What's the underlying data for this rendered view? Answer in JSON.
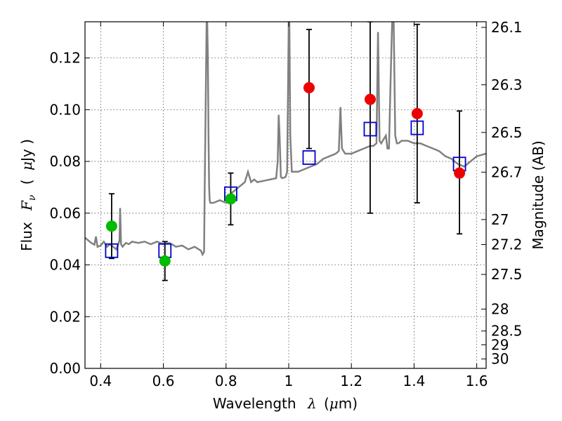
{
  "chart_data": {
    "type": "scatter",
    "title": "",
    "xlabel": "Wavelength",
    "xlabel_symbol": "λ",
    "xlabel_unit_open": "(",
    "xlabel_unit_mu": "μ",
    "xlabel_unit_rest": "m)",
    "ylabel_prefix": "Flux",
    "ylabel_symbol": "F",
    "ylabel_subscript": "ν",
    "ylabel_unit_open": "(",
    "ylabel_unit_mu": "μ",
    "ylabel_unit_rest": "Jy )",
    "y2label": "Magnitude (AB)",
    "xlim": [
      0.35,
      1.63
    ],
    "ylim": [
      0.0,
      0.134
    ],
    "grid": true,
    "x_ticks": [
      "0.4",
      "0.6",
      "0.8",
      "1",
      "1.2",
      "1.4",
      "1.6"
    ],
    "x_tick_values": [
      0.4,
      0.6,
      0.8,
      1.0,
      1.2,
      1.4,
      1.6
    ],
    "y_ticks": [
      "0.00",
      "0.02",
      "0.04",
      "0.06",
      "0.08",
      "0.10",
      "0.12"
    ],
    "y_tick_values": [
      0.0,
      0.02,
      0.04,
      0.06,
      0.08,
      0.1,
      0.12
    ],
    "y2_ticks": [
      "26.1",
      "26.3",
      "26.5",
      "26.7",
      "27",
      "27.2",
      "27.5",
      "28",
      "28.5",
      "29",
      "30"
    ],
    "y2_tick_values": [
      26.1,
      26.3,
      26.5,
      26.7,
      27.0,
      27.2,
      27.5,
      28.0,
      28.5,
      29.0,
      30.0
    ],
    "colors": {
      "model": "#808080",
      "model_photometry": "#0000cc",
      "green_points": "#00bb00",
      "red_points": "#ee0000",
      "errorbar": "#000000",
      "grid": "#555555"
    },
    "model_spectrum": {
      "name": "",
      "x": [
        0.35,
        0.36,
        0.37,
        0.38,
        0.385,
        0.39,
        0.4,
        0.41,
        0.42,
        0.43,
        0.44,
        0.45,
        0.455,
        0.46,
        0.462,
        0.465,
        0.47,
        0.48,
        0.49,
        0.5,
        0.52,
        0.54,
        0.56,
        0.58,
        0.6,
        0.62,
        0.64,
        0.66,
        0.68,
        0.7,
        0.72,
        0.725,
        0.73,
        0.732,
        0.735,
        0.738,
        0.74,
        0.742,
        0.744,
        0.746,
        0.748,
        0.75,
        0.76,
        0.78,
        0.8,
        0.82,
        0.84,
        0.86,
        0.87,
        0.88,
        0.89,
        0.9,
        0.92,
        0.94,
        0.96,
        0.965,
        0.968,
        0.971,
        0.975,
        0.98,
        0.99,
        0.995,
        0.998,
        1.0,
        1.002,
        1.005,
        1.01,
        1.03,
        1.05,
        1.07,
        1.09,
        1.11,
        1.13,
        1.15,
        1.16,
        1.165,
        1.17,
        1.18,
        1.2,
        1.22,
        1.24,
        1.26,
        1.27,
        1.28,
        1.285,
        1.29,
        1.295,
        1.3,
        1.31,
        1.315,
        1.32,
        1.325,
        1.33,
        1.335,
        1.34,
        1.345,
        1.35,
        1.36,
        1.38,
        1.4,
        1.42,
        1.44,
        1.46,
        1.48,
        1.5,
        1.52,
        1.54,
        1.56,
        1.58,
        1.6,
        1.63
      ],
      "y": [
        0.0505,
        0.0495,
        0.0485,
        0.0478,
        0.051,
        0.047,
        0.0475,
        0.049,
        0.047,
        0.048,
        0.047,
        0.046,
        0.0475,
        0.0495,
        0.062,
        0.048,
        0.047,
        0.0485,
        0.048,
        0.049,
        0.0485,
        0.049,
        0.048,
        0.049,
        0.048,
        0.0485,
        0.047,
        0.0475,
        0.046,
        0.047,
        0.0455,
        0.044,
        0.045,
        0.07,
        0.1,
        0.134,
        0.134,
        0.12,
        0.09,
        0.07,
        0.065,
        0.064,
        0.064,
        0.065,
        0.064,
        0.068,
        0.07,
        0.072,
        0.076,
        0.072,
        0.073,
        0.072,
        0.0725,
        0.073,
        0.0735,
        0.08,
        0.098,
        0.09,
        0.074,
        0.0735,
        0.074,
        0.076,
        0.11,
        0.134,
        0.134,
        0.09,
        0.076,
        0.076,
        0.077,
        0.078,
        0.079,
        0.081,
        0.082,
        0.083,
        0.084,
        0.101,
        0.085,
        0.083,
        0.083,
        0.084,
        0.085,
        0.086,
        0.086,
        0.087,
        0.13,
        0.088,
        0.087,
        0.088,
        0.09,
        0.085,
        0.085,
        0.11,
        0.134,
        0.134,
        0.09,
        0.087,
        0.087,
        0.088,
        0.088,
        0.087,
        0.087,
        0.086,
        0.085,
        0.084,
        0.082,
        0.081,
        0.079,
        0.078,
        0.08,
        0.082,
        0.083
      ]
    },
    "model_photometry": {
      "name": "",
      "marker": "open-square",
      "x": [
        0.435,
        0.605,
        0.815,
        1.065,
        1.26,
        1.41,
        1.545
      ],
      "y": [
        0.0455,
        0.0455,
        0.0675,
        0.0815,
        0.0925,
        0.093,
        0.079
      ]
    },
    "observed": {
      "name": "",
      "marker": "filled-circle",
      "x": [
        0.435,
        0.605,
        0.815,
        1.065,
        1.26,
        1.41,
        1.545
      ],
      "y": [
        0.055,
        0.0415,
        0.0655,
        0.1085,
        0.104,
        0.0985,
        0.0755
      ],
      "yerr_low": [
        0.0425,
        0.034,
        0.0555,
        0.085,
        0.06,
        0.064,
        0.052
      ],
      "yerr_high": [
        0.0675,
        0.049,
        0.0755,
        0.131,
        0.134,
        0.133,
        0.0995
      ],
      "point_colors": [
        "green",
        "green",
        "green",
        "red",
        "red",
        "red",
        "red"
      ]
    }
  }
}
